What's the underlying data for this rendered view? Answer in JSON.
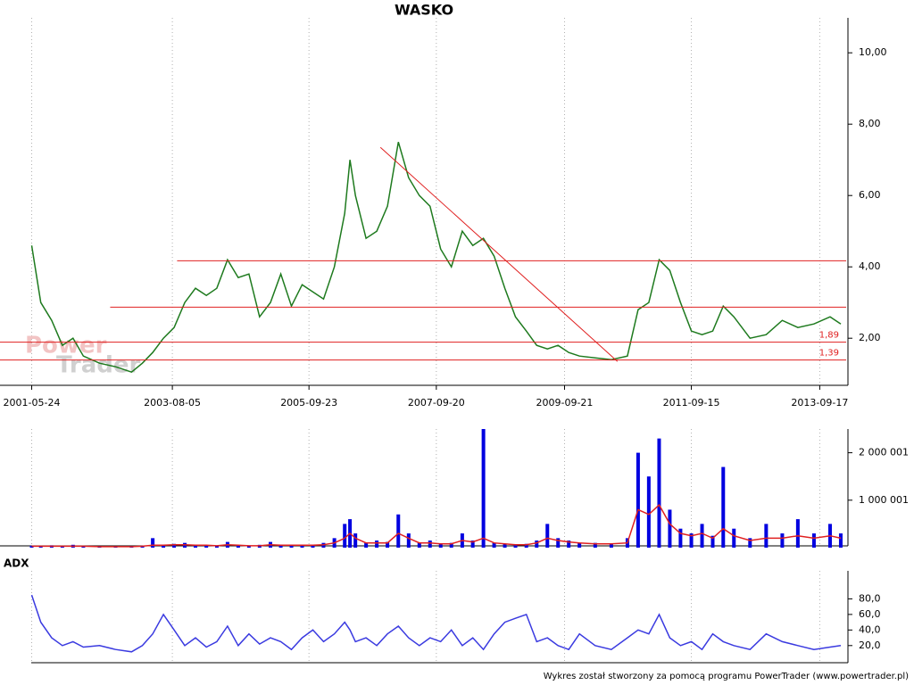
{
  "chart_data": [
    {
      "type": "line",
      "title": "WASKO",
      "x": [
        "2001-05-24",
        "2001-07-15",
        "2001-09-15",
        "2001-11-15",
        "2002-01-15",
        "2002-03-15",
        "2002-06-15",
        "2002-09-15",
        "2002-12-15",
        "2003-02-15",
        "2003-04-15",
        "2003-06-15",
        "2003-08-15",
        "2003-10-15",
        "2003-12-15",
        "2004-02-15",
        "2004-04-15",
        "2004-06-15",
        "2004-08-15",
        "2004-10-15",
        "2004-12-15",
        "2005-02-15",
        "2005-04-15",
        "2005-06-15",
        "2005-08-15",
        "2005-10-15",
        "2005-12-15",
        "2006-02-15",
        "2006-04-15",
        "2006-05-15",
        "2006-06-15",
        "2006-08-15",
        "2006-10-15",
        "2006-12-15",
        "2007-02-15",
        "2007-04-15",
        "2007-06-15",
        "2007-08-15",
        "2007-10-15",
        "2007-12-15",
        "2008-02-15",
        "2008-04-15",
        "2008-06-15",
        "2008-08-15",
        "2008-10-15",
        "2008-12-15",
        "2009-02-15",
        "2009-04-15",
        "2009-06-15",
        "2009-08-15",
        "2009-10-15",
        "2009-12-15",
        "2010-03-15",
        "2010-06-15",
        "2010-09-15",
        "2010-11-15",
        "2011-01-15",
        "2011-03-15",
        "2011-05-15",
        "2011-07-15",
        "2011-09-15",
        "2011-11-15",
        "2012-01-15",
        "2012-03-15",
        "2012-05-15",
        "2012-08-15",
        "2012-11-15",
        "2013-02-15",
        "2013-05-15",
        "2013-08-15",
        "2013-11-15",
        "2014-01-15"
      ],
      "values": [
        4.6,
        3.0,
        2.5,
        1.8,
        2.0,
        1.5,
        1.3,
        1.2,
        1.05,
        1.3,
        1.6,
        2.0,
        2.3,
        3.0,
        3.4,
        3.2,
        3.4,
        4.2,
        3.7,
        3.8,
        2.6,
        3.0,
        3.8,
        2.9,
        3.5,
        3.3,
        3.1,
        4.0,
        5.5,
        7.0,
        6.0,
        4.8,
        5.0,
        5.7,
        7.5,
        6.5,
        6.0,
        5.7,
        4.5,
        4.0,
        5.0,
        4.6,
        4.8,
        4.3,
        3.4,
        2.6,
        2.2,
        1.8,
        1.7,
        1.8,
        1.6,
        1.5,
        1.45,
        1.4,
        1.5,
        2.8,
        3.0,
        4.2,
        3.9,
        3.0,
        2.2,
        2.1,
        2.2,
        2.9,
        2.6,
        2.0,
        2.1,
        2.5,
        2.3,
        2.4,
        2.6,
        2.4
      ],
      "color": "#1e7a1e",
      "xlim": [
        "2000-11-24",
        "2014-02-25"
      ],
      "xticks": [
        "2001-05-24",
        "2003-08-05",
        "2005-09-23",
        "2007-09-20",
        "2009-09-21",
        "2011-09-15",
        "2013-09-17"
      ],
      "ylim": [
        0.78,
        10.98
      ],
      "yticks": [
        {
          "value": 2,
          "label": "2,00"
        },
        {
          "value": 4,
          "label": "4,00"
        },
        {
          "value": 6,
          "label": "6,00"
        },
        {
          "value": 8,
          "label": "8,00"
        },
        {
          "value": 10,
          "label": "10,00"
        }
      ],
      "levels": [
        {
          "value": 4.17,
          "from": "2003-09-01"
        },
        {
          "value": 2.87,
          "from": "2002-08-15"
        },
        {
          "value": 1.89,
          "label": "1,89"
        },
        {
          "value": 1.39,
          "label": "1,39"
        }
      ],
      "level_color": "#e02020",
      "trendline": {
        "x": [
          "2006-11-05",
          "2010-07-20"
        ],
        "values": [
          7.35,
          1.35
        ]
      },
      "watermark": [
        "Power",
        "Trader"
      ],
      "grid": true
    },
    {
      "type": "bar",
      "x": [
        "2001-05-24",
        "2001-07-15",
        "2001-09-15",
        "2001-11-15",
        "2002-01-15",
        "2002-03-15",
        "2002-06-15",
        "2002-09-15",
        "2002-12-15",
        "2003-02-15",
        "2003-04-15",
        "2003-06-15",
        "2003-08-15",
        "2003-10-15",
        "2003-12-15",
        "2004-02-15",
        "2004-04-15",
        "2004-06-15",
        "2004-08-15",
        "2004-10-15",
        "2004-12-15",
        "2005-02-15",
        "2005-04-15",
        "2005-06-15",
        "2005-08-15",
        "2005-10-15",
        "2005-12-15",
        "2006-02-15",
        "2006-04-15",
        "2006-05-15",
        "2006-06-15",
        "2006-08-15",
        "2006-10-15",
        "2006-12-15",
        "2007-02-15",
        "2007-04-15",
        "2007-06-15",
        "2007-08-15",
        "2007-10-15",
        "2007-12-15",
        "2008-02-15",
        "2008-04-15",
        "2008-06-15",
        "2008-08-15",
        "2008-10-15",
        "2008-12-15",
        "2009-02-15",
        "2009-04-15",
        "2009-06-15",
        "2009-08-15",
        "2009-10-15",
        "2009-12-15",
        "2010-03-15",
        "2010-06-15",
        "2010-09-15",
        "2010-11-15",
        "2011-01-15",
        "2011-03-15",
        "2011-05-15",
        "2011-07-15",
        "2011-09-15",
        "2011-11-15",
        "2012-01-15",
        "2012-03-15",
        "2012-05-15",
        "2012-08-15",
        "2012-11-15",
        "2013-02-15",
        "2013-05-15",
        "2013-08-15",
        "2013-11-15",
        "2014-01-15"
      ],
      "series": [
        {
          "color": "#0000e0",
          "values": [
            40000,
            30000,
            50000,
            20000,
            60000,
            30000,
            20000,
            20000,
            30000,
            40000,
            200000,
            60000,
            80000,
            100000,
            60000,
            50000,
            40000,
            120000,
            50000,
            40000,
            60000,
            120000,
            50000,
            60000,
            60000,
            50000,
            100000,
            200000,
            500000,
            600000,
            300000,
            100000,
            150000,
            120000,
            700000,
            300000,
            100000,
            150000,
            80000,
            100000,
            300000,
            150000,
            2500000,
            100000,
            80000,
            60000,
            80000,
            150000,
            500000,
            200000,
            150000,
            100000,
            100000,
            80000,
            200000,
            2000000,
            1500000,
            2300000,
            800000,
            400000,
            300000,
            500000,
            250000,
            1700000,
            400000,
            200000,
            500000,
            300000,
            600000,
            300000,
            500000,
            300000
          ]
        },
        {
          "color": "#e02020",
          "values": [
            30000,
            30000,
            30000,
            30000,
            30000,
            30000,
            20000,
            20000,
            20000,
            30000,
            50000,
            50000,
            60000,
            60000,
            50000,
            50000,
            40000,
            60000,
            50000,
            40000,
            40000,
            60000,
            50000,
            50000,
            50000,
            50000,
            60000,
            100000,
            200000,
            300000,
            200000,
            100000,
            100000,
            100000,
            300000,
            200000,
            100000,
            100000,
            80000,
            80000,
            150000,
            120000,
            200000,
            100000,
            80000,
            60000,
            60000,
            100000,
            200000,
            150000,
            120000,
            100000,
            80000,
            80000,
            100000,
            800000,
            700000,
            900000,
            500000,
            300000,
            250000,
            300000,
            200000,
            400000,
            250000,
            150000,
            200000,
            200000,
            250000,
            200000,
            250000,
            200000
          ]
        }
      ],
      "xlim": [
        "2000-11-24",
        "2014-02-25"
      ],
      "ylim": [
        0,
        2500000
      ],
      "yticks": [
        {
          "value": 1000001,
          "label": "1 000 001"
        },
        {
          "value": 2000001,
          "label": "2 000 001"
        }
      ]
    },
    {
      "type": "line",
      "title": "ADX",
      "x": [
        "2001-05-24",
        "2001-07-15",
        "2001-09-15",
        "2001-11-15",
        "2002-01-15",
        "2002-03-15",
        "2002-06-15",
        "2002-09-15",
        "2002-12-15",
        "2003-02-15",
        "2003-04-15",
        "2003-06-15",
        "2003-08-15",
        "2003-10-15",
        "2003-12-15",
        "2004-02-15",
        "2004-04-15",
        "2004-06-15",
        "2004-08-15",
        "2004-10-15",
        "2004-12-15",
        "2005-02-15",
        "2005-04-15",
        "2005-06-15",
        "2005-08-15",
        "2005-10-15",
        "2005-12-15",
        "2006-02-15",
        "2006-04-15",
        "2006-05-15",
        "2006-06-15",
        "2006-08-15",
        "2006-10-15",
        "2006-12-15",
        "2007-02-15",
        "2007-04-15",
        "2007-06-15",
        "2007-08-15",
        "2007-10-15",
        "2007-12-15",
        "2008-02-15",
        "2008-04-15",
        "2008-06-15",
        "2008-08-15",
        "2008-10-15",
        "2008-12-15",
        "2009-02-15",
        "2009-04-15",
        "2009-06-15",
        "2009-08-15",
        "2009-10-15",
        "2009-12-15",
        "2010-03-15",
        "2010-06-15",
        "2010-09-15",
        "2010-11-15",
        "2011-01-15",
        "2011-03-15",
        "2011-05-15",
        "2011-07-15",
        "2011-09-15",
        "2011-11-15",
        "2012-01-15",
        "2012-03-15",
        "2012-05-15",
        "2012-08-15",
        "2012-11-15",
        "2013-02-15",
        "2013-05-15",
        "2013-08-15",
        "2013-11-15",
        "2014-01-15"
      ],
      "values": [
        85,
        50,
        30,
        20,
        25,
        18,
        20,
        15,
        12,
        20,
        35,
        60,
        40,
        20,
        30,
        18,
        25,
        45,
        20,
        35,
        22,
        30,
        25,
        15,
        30,
        40,
        25,
        35,
        50,
        40,
        25,
        30,
        20,
        35,
        45,
        30,
        20,
        30,
        25,
        40,
        20,
        30,
        15,
        35,
        50,
        55,
        60,
        25,
        30,
        20,
        15,
        35,
        20,
        15,
        30,
        40,
        35,
        60,
        30,
        20,
        25,
        15,
        35,
        25,
        20,
        15,
        35,
        25,
        20,
        15,
        18,
        20
      ],
      "color": "#3a3ae0",
      "xlim": [
        "2000-11-24",
        "2014-02-25"
      ],
      "ylim": [
        -2,
        116
      ],
      "yticks": [
        {
          "value": 20,
          "label": "20,0"
        },
        {
          "value": 40,
          "label": "40,0"
        },
        {
          "value": 60,
          "label": "60,0"
        },
        {
          "value": 80,
          "label": "80,0"
        }
      ]
    }
  ],
  "footer": "Wykres został stworzony za pomocą programu PowerTrader (www.powertrader.pl)"
}
